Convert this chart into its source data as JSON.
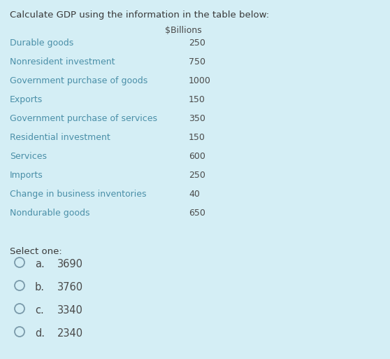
{
  "background_color": "#d4eef5",
  "title": "Calculate GDP using the information in the table below:",
  "title_fontsize": 9.5,
  "title_color": "#3a3a3a",
  "header": "$Billions",
  "header_fontsize": 9,
  "header_color": "#4a4a4a",
  "table_rows": [
    [
      "Durable goods",
      "250"
    ],
    [
      "Nonresident investment",
      "750"
    ],
    [
      "Government purchase of goods",
      "1000"
    ],
    [
      "Exports",
      "150"
    ],
    [
      "Government purchase of services",
      "350"
    ],
    [
      "Residential investment",
      "150"
    ],
    [
      "Services",
      "600"
    ],
    [
      "Imports",
      "250"
    ],
    [
      "Change in business inventories",
      "40"
    ],
    [
      "Nondurable goods",
      "650"
    ]
  ],
  "row_fontsize": 9,
  "row_label_color": "#4a8fa8",
  "row_value_color": "#4a4a4a",
  "select_one_label": "Select one:",
  "select_one_fontsize": 9.5,
  "select_one_color": "#3a3a3a",
  "options": [
    [
      "a.",
      "3690"
    ],
    [
      "b.",
      "3760"
    ],
    [
      "c.",
      "3340"
    ],
    [
      "d.",
      "2340"
    ]
  ],
  "options_fontsize": 10.5,
  "options_color": "#4a4a4a",
  "circle_color": "#7a9aaa"
}
